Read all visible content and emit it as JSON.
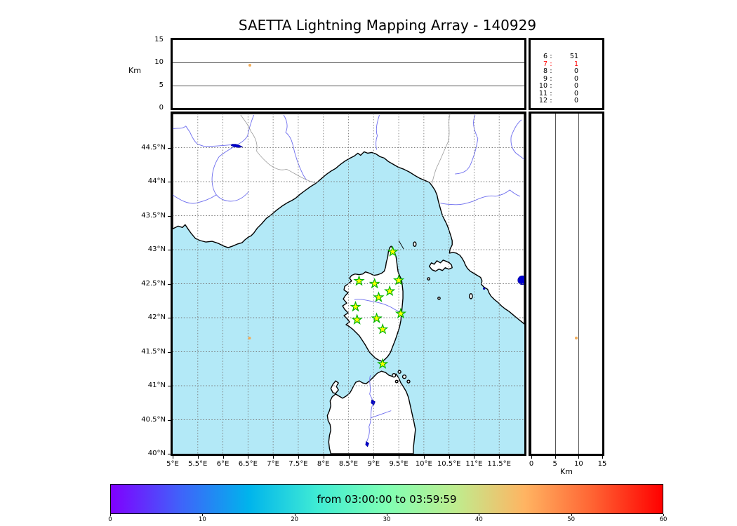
{
  "title": "SAETTA Lightning Mapping Array - 140929",
  "top_panel": {
    "ylabel": "Km",
    "yticks": [
      0,
      5,
      10,
      15
    ],
    "ylim": [
      0,
      15
    ],
    "gridlines_km": [
      5,
      10
    ]
  },
  "stats_box": {
    "rows": [
      {
        "hour": "6",
        "colon": ":",
        "count": "51",
        "color": "#000000"
      },
      {
        "hour": "7",
        "colon": ":",
        "count": "1",
        "color": "#ff0000"
      },
      {
        "hour": "8",
        "colon": ":",
        "count": "0",
        "color": "#000000"
      },
      {
        "hour": "9",
        "colon": ":",
        "count": "0",
        "color": "#000000"
      },
      {
        "hour": "10",
        "colon": ":",
        "count": "0",
        "color": "#000000"
      },
      {
        "hour": "11",
        "colon": ":",
        "count": "0",
        "color": "#000000"
      },
      {
        "hour": "12",
        "colon": ":",
        "count": "0",
        "color": "#000000"
      }
    ]
  },
  "map_panel": {
    "lon_ticks": [
      {
        "value": 5,
        "label": "5°E"
      },
      {
        "value": 5.5,
        "label": "5.5°E"
      },
      {
        "value": 6,
        "label": "6°E"
      },
      {
        "value": 6.5,
        "label": "6.5°E"
      },
      {
        "value": 7,
        "label": "7°E"
      },
      {
        "value": 7.5,
        "label": "7.5°E"
      },
      {
        "value": 8,
        "label": "8°E"
      },
      {
        "value": 8.5,
        "label": "8.5°E"
      },
      {
        "value": 9,
        "label": "9°E"
      },
      {
        "value": 9.5,
        "label": "9.5°E"
      },
      {
        "value": 10,
        "label": "10°E"
      },
      {
        "value": 10.5,
        "label": "10.5°E"
      },
      {
        "value": 11,
        "label": "11°E"
      },
      {
        "value": 11.5,
        "label": "11.5°E"
      }
    ],
    "lat_ticks": [
      {
        "value": 44.5,
        "label": "44.5°N"
      },
      {
        "value": 44,
        "label": "44°N"
      },
      {
        "value": 43.5,
        "label": "43.5°N"
      },
      {
        "value": 43,
        "label": "43°N"
      },
      {
        "value": 42.5,
        "label": "42.5°N"
      },
      {
        "value": 42,
        "label": "42°N"
      },
      {
        "value": 41.5,
        "label": "41.5°N"
      },
      {
        "value": 41,
        "label": "41°N"
      },
      {
        "value": 40.5,
        "label": "40.5°N"
      },
      {
        "value": 40,
        "label": "40°N"
      }
    ]
  },
  "right_panel": {
    "xlabel": "Km",
    "xticks": [
      0,
      5,
      10,
      15
    ],
    "xlim": [
      0,
      15
    ],
    "gridlines_km": [
      5,
      10
    ]
  },
  "colorbar": {
    "label": "from 03:00:00 to 03:59:59",
    "ticks": [
      0,
      10,
      20,
      30,
      40,
      50,
      60
    ],
    "range": [
      0,
      60
    ],
    "gradient": [
      "#8000FF",
      "#4062FA",
      "#00B4EC",
      "#40ECD4",
      "#80FFB4",
      "#BFEC8E",
      "#FFB462",
      "#FF6232",
      "#FF0000"
    ]
  },
  "colors": {
    "sea": "#b3e9f7",
    "land": "#ffffff",
    "coastline": "#000000",
    "river": "#6b6bee",
    "lake": "#0000cd",
    "country_border": "#999999",
    "grid": "#777777",
    "station_fill": "#ffff00",
    "station_edge": "#00b400",
    "source_dot": "#f2ac58",
    "highlight_red": "#ff0000"
  },
  "chart_data": {
    "type": "scatter",
    "title": "SAETTA Lightning Mapping Array - 140929",
    "panels": {
      "top": "altitude (0-15 Km) vs longitude (5-12 E)",
      "main": "map, longitude 5-12 E vs latitude 40-45 N",
      "right": "latitude (40-45 N) vs altitude (0-15 Km)"
    },
    "map_extent": {
      "lon": [
        5,
        12
      ],
      "lat": [
        40,
        45
      ]
    },
    "altitude_axis_km": {
      "range": [
        0,
        15
      ],
      "gridlines": [
        5,
        10
      ]
    },
    "lma_stations_lon_lat": [
      [
        9.38,
        42.97
      ],
      [
        8.71,
        42.54
      ],
      [
        9.02,
        42.5
      ],
      [
        9.5,
        42.55
      ],
      [
        9.32,
        42.39
      ],
      [
        9.1,
        42.3
      ],
      [
        8.64,
        42.16
      ],
      [
        9.54,
        42.06
      ],
      [
        8.67,
        41.97
      ],
      [
        9.06,
        41.99
      ],
      [
        9.18,
        41.83
      ],
      [
        9.18,
        41.32
      ]
    ],
    "lightning_sources": [
      {
        "lon": 6.53,
        "lat": 41.7,
        "alt_km": 9.5,
        "color": "#f2ac58"
      }
    ],
    "hourly_source_counts": [
      {
        "hour": 6,
        "count": 51,
        "highlighted": false
      },
      {
        "hour": 7,
        "count": 1,
        "highlighted": true
      },
      {
        "hour": 8,
        "count": 0,
        "highlighted": false
      },
      {
        "hour": 9,
        "count": 0,
        "highlighted": false
      },
      {
        "hour": 10,
        "count": 0,
        "highlighted": false
      },
      {
        "hour": 11,
        "count": 0,
        "highlighted": false
      },
      {
        "hour": 12,
        "count": 0,
        "highlighted": false
      }
    ],
    "time_window_label": "from 03:00:00 to 03:59:59",
    "colorbar": {
      "range_minutes": [
        0,
        60
      ],
      "ticks": [
        0,
        10,
        20,
        30,
        40,
        50,
        60
      ],
      "colormap": "rainbow"
    }
  }
}
